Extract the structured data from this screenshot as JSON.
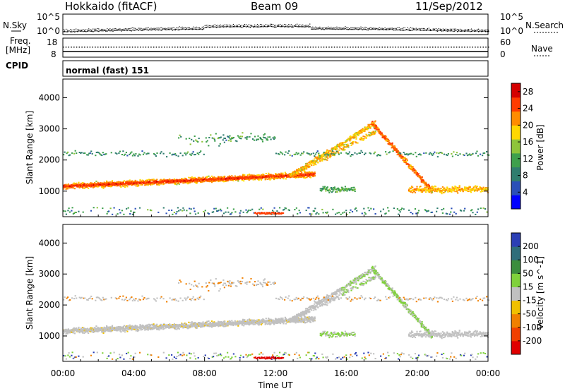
{
  "header": {
    "station": "Hokkaido (fitACF)",
    "beam": "Beam 09",
    "date": "11/Sep/2012"
  },
  "strip_labels": {
    "nsky": "N.Sky",
    "nsearch": "N.Search",
    "freq_line1": "Freq.",
    "freq_line2": "[MHz]",
    "nave": "Nave",
    "cpid": "CPID",
    "cpid_value": "normal (fast) 151"
  },
  "strip_ticks": {
    "noise_left_top": "10^5",
    "noise_left_bottom": "10^0",
    "noise_right_top": "10^5",
    "noise_right_bottom": "10^0",
    "freq_left_top": "18",
    "freq_left_bottom": "8",
    "nave_right_top": "60",
    "nave_right_bottom": "0"
  },
  "chart_data": [
    {
      "type": "heatmap",
      "title": "",
      "ylabel": "Slant Range [km]",
      "xlabel": "",
      "ylim": [
        180,
        4600
      ],
      "yticks": [
        "1000",
        "2000",
        "3000",
        "4000"
      ],
      "x_range_hours": [
        0,
        24
      ],
      "colorbar": {
        "label": "Power [dB]",
        "ticks": [
          "4",
          "8",
          "12",
          "16",
          "20",
          "24",
          "28"
        ],
        "range": [
          0,
          30
        ],
        "colors": [
          "#0000ff",
          "#2a4fb8",
          "#2f7d6e",
          "#3ea04c",
          "#8ec43a",
          "#ffd700",
          "#ff8c00",
          "#ff3b00",
          "#d40000"
        ]
      },
      "features": [
        {
          "name": "main_band",
          "start_h": 0,
          "end_h": 14,
          "start_km": 1150,
          "end_km": 1500,
          "peak_power_db": 27
        },
        {
          "name": "rising_arc",
          "start_h": 13,
          "end_h": 17.5,
          "start_km": 1500,
          "end_km": 3200
        },
        {
          "name": "falling_arc",
          "start_h": 17.5,
          "end_h": 20.5,
          "start_km": 3200,
          "end_km": 1000
        },
        {
          "name": "upper_band",
          "start_h": 0,
          "end_h": 24,
          "start_km": 2200,
          "end_km": 2200
        }
      ]
    },
    {
      "type": "heatmap",
      "title": "",
      "ylabel": "Slant Range [km]",
      "xlabel": "Time UT",
      "ylim": [
        180,
        4600
      ],
      "yticks": [
        "1000",
        "2000",
        "3000",
        "4000"
      ],
      "xticks": [
        "00:00",
        "04:00",
        "08:00",
        "12:00",
        "16:00",
        "20:00",
        "00:00"
      ],
      "x_range_hours": [
        0,
        24
      ],
      "colorbar": {
        "label": "Velocity [m s^-1]",
        "ticks": [
          "200",
          "100",
          "50",
          "15",
          "-15",
          "-50",
          "-100",
          "-200"
        ],
        "range": [
          -250,
          250
        ],
        "colors": [
          "#2b3fb5",
          "#2f6d7a",
          "#3b8d3d",
          "#7fd13b",
          "#c0c0c0",
          "#f0c000",
          "#f08000",
          "#f04000",
          "#e00000"
        ]
      }
    }
  ]
}
